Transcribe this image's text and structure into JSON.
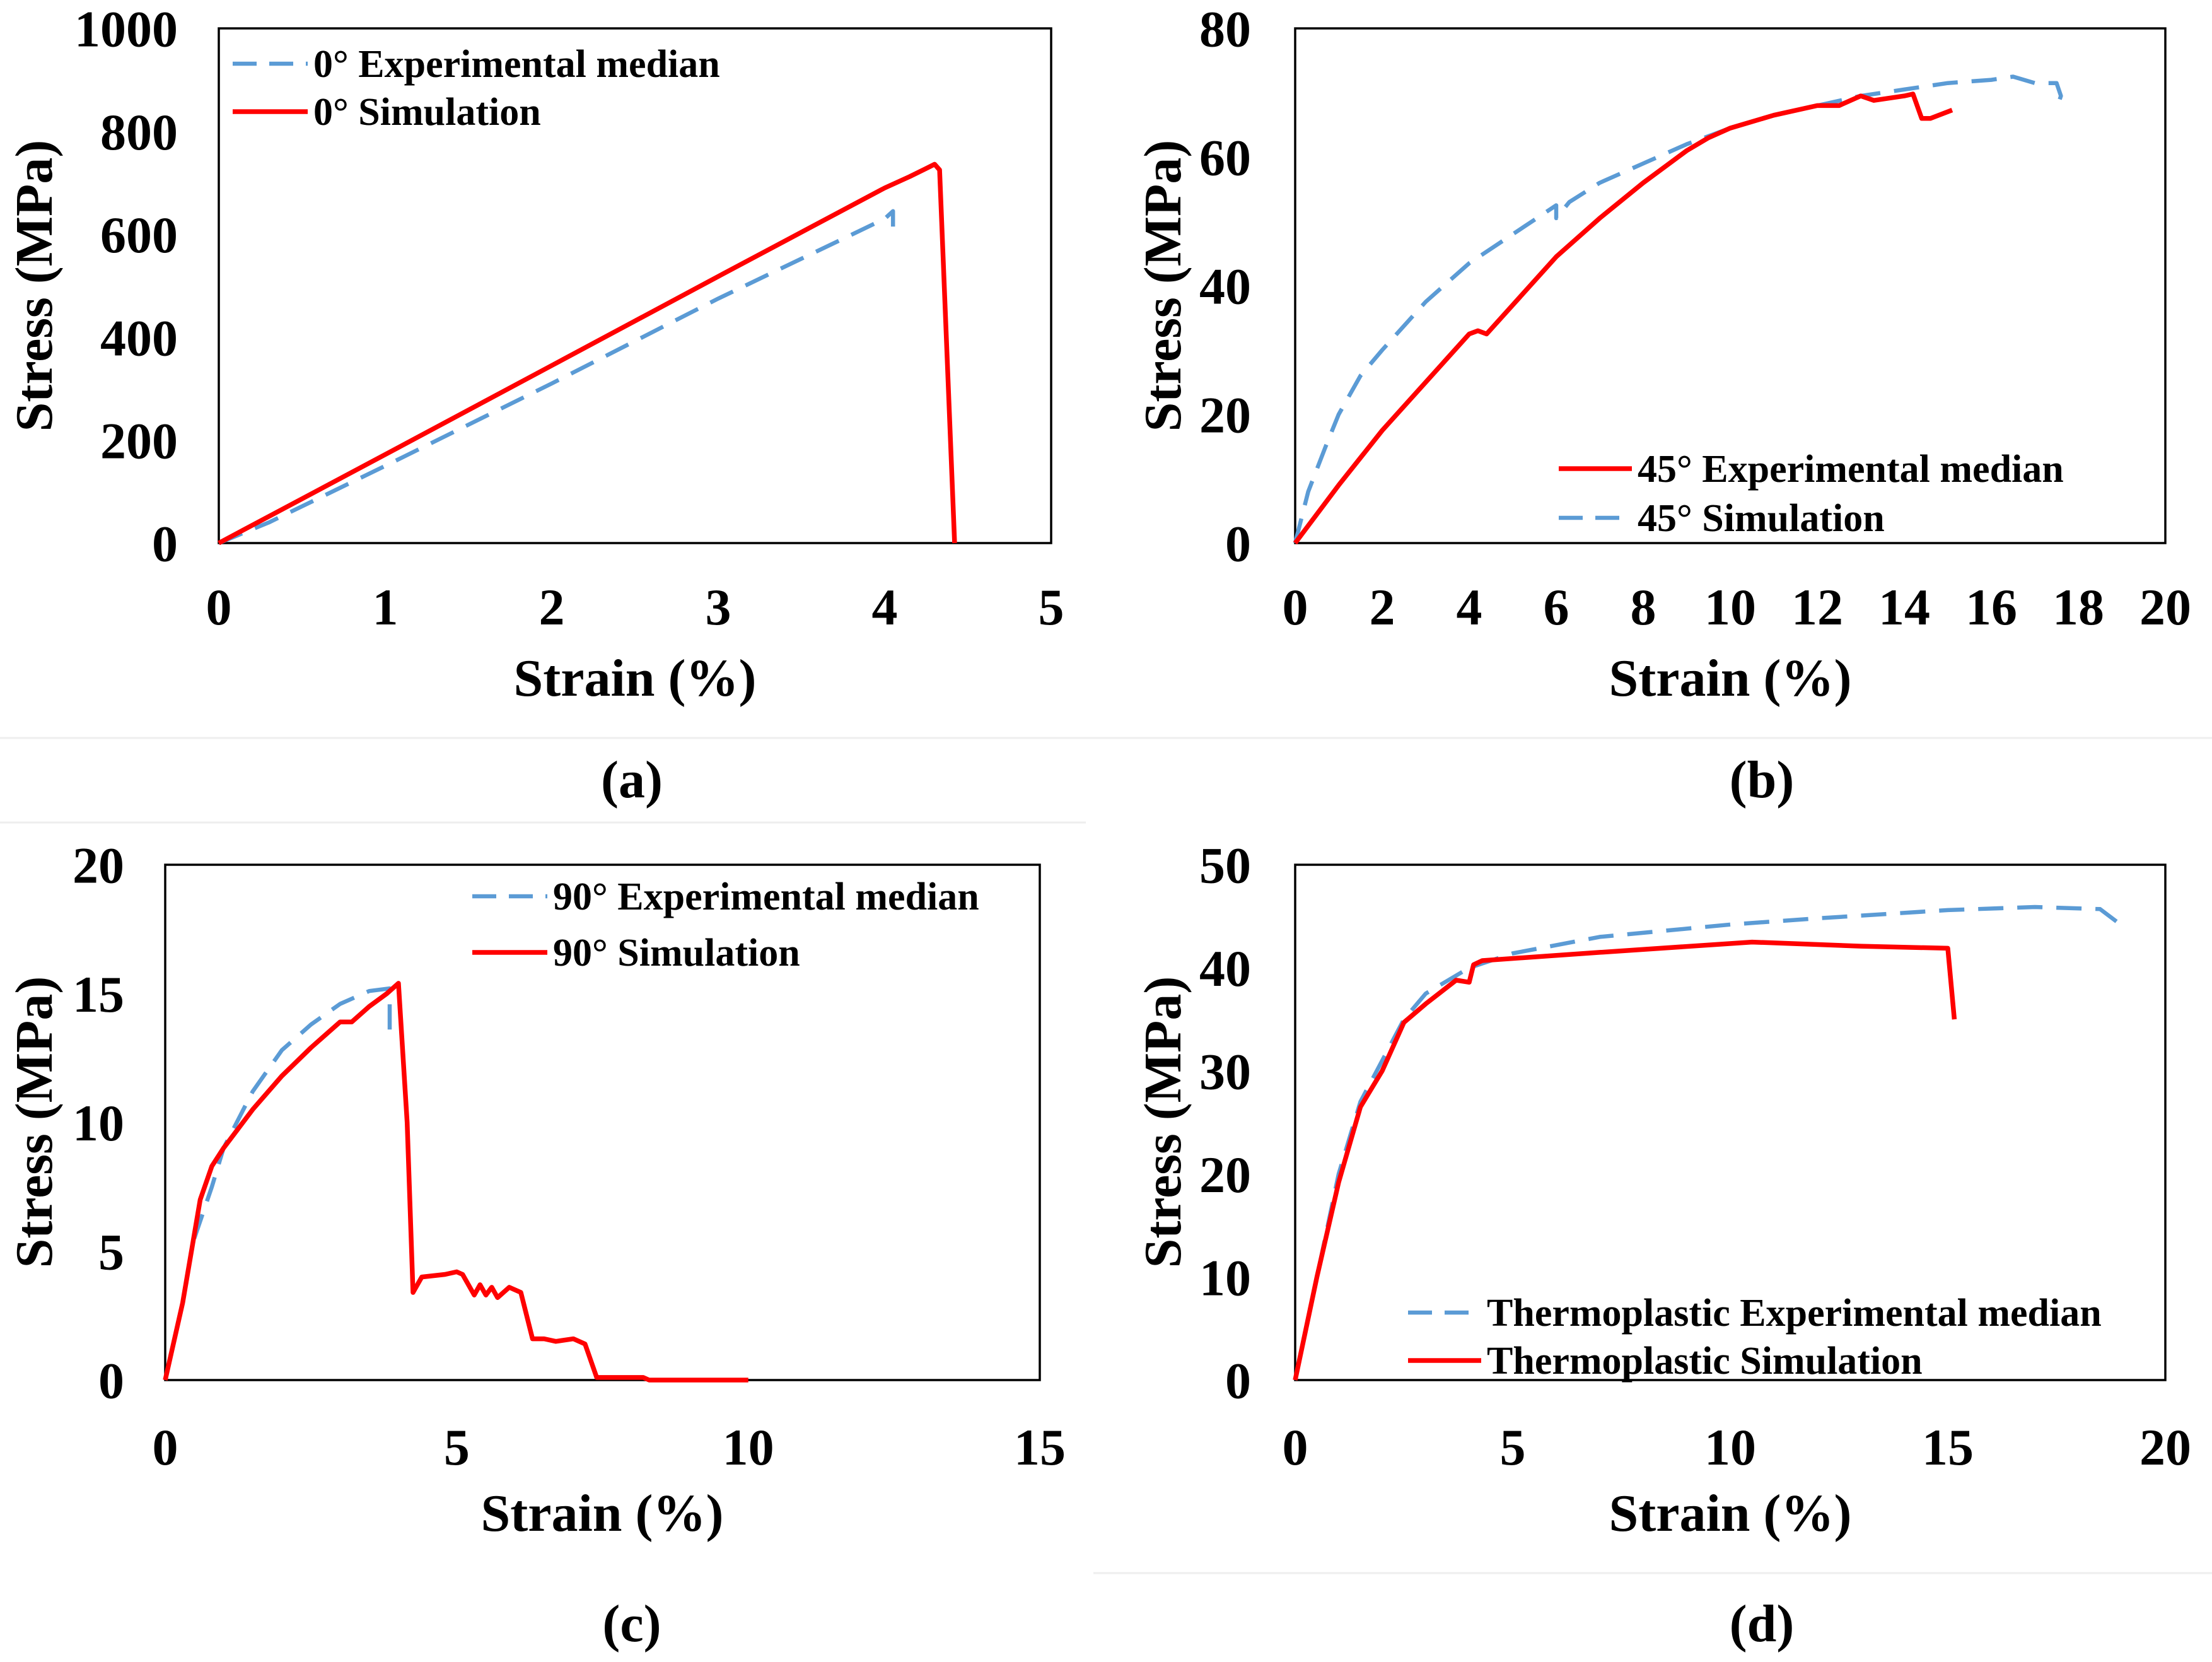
{
  "chart_data": [
    {
      "id": "a",
      "panel_label": "(a)",
      "type": "line",
      "xlabel": "Strain (%)",
      "ylabel": "Stress (MPa)",
      "xlim": [
        0,
        5
      ],
      "ylim": [
        0,
        1000
      ],
      "x_ticks": [
        0,
        1,
        2,
        3,
        4,
        5
      ],
      "y_ticks": [
        0,
        200,
        400,
        600,
        800,
        1000
      ],
      "grid": false,
      "legend_position": "top-left",
      "series": [
        {
          "name": "0° Experimental median",
          "color": "#5B9BD5",
          "line_style": "dashed",
          "x": [
            0,
            0.3,
            1,
            2,
            3,
            4,
            4.05,
            4.05
          ],
          "y": [
            0,
            40,
            150,
            310,
            475,
            630,
            645,
            615
          ]
        },
        {
          "name": "0° Simulation",
          "color": "#FF0000",
          "line_style": "solid",
          "x": [
            0,
            1,
            2,
            3,
            4,
            4.15,
            4.25,
            4.3,
            4.33,
            4.42
          ],
          "y": [
            0,
            172,
            345,
            518,
            690,
            712,
            728,
            736,
            725,
            0
          ]
        }
      ]
    },
    {
      "id": "b",
      "panel_label": "(b)",
      "type": "line",
      "xlabel": "Strain (%)",
      "ylabel": "Stress (MPa)",
      "xlim": [
        0,
        20
      ],
      "ylim": [
        0,
        80
      ],
      "x_ticks": [
        0,
        2,
        4,
        6,
        8,
        10,
        12,
        14,
        16,
        18,
        20
      ],
      "y_ticks": [
        0,
        20,
        40,
        60,
        80
      ],
      "grid": false,
      "legend_position": "bottom-right",
      "series": [
        {
          "name": "45° Experimental median",
          "color": "#FF0000",
          "line_style": "solid",
          "x": [
            0,
            1,
            2,
            3,
            4,
            4.2,
            4.4,
            5,
            6,
            7,
            8,
            9,
            9.5,
            10,
            11,
            12,
            12.5,
            13,
            13.3,
            14,
            14.2,
            14.4,
            14.6,
            15.1
          ],
          "y": [
            0,
            9,
            17.5,
            25,
            32.5,
            33,
            32.5,
            37,
            44.5,
            50.5,
            56,
            61,
            63,
            64.5,
            66.5,
            68,
            68,
            69.5,
            68.8,
            69.5,
            69.8,
            66,
            66,
            67.3
          ]
        },
        {
          "name": "45° Simulation",
          "color": "#5B9BD5",
          "line_style": "dashed",
          "x": [
            0,
            0.3,
            0.7,
            1,
            1.5,
            2,
            3,
            4,
            5,
            6,
            6,
            6.3,
            7,
            8,
            9,
            10,
            11,
            12,
            13,
            14,
            15,
            16,
            16.5,
            17,
            17.5,
            17.6,
            17.5
          ],
          "y": [
            0,
            8,
            15,
            20,
            26,
            30,
            37.5,
            43.5,
            48,
            52.5,
            50.5,
            53,
            56,
            59,
            62,
            64.5,
            66.5,
            68,
            69.5,
            70.5,
            71.5,
            72,
            72.5,
            71.5,
            71.5,
            69.5,
            67.5
          ]
        }
      ]
    },
    {
      "id": "c",
      "panel_label": "(c)",
      "type": "line",
      "xlabel": "Strain (%)",
      "ylabel": "Stress (MPa)",
      "xlim": [
        0,
        15
      ],
      "ylim": [
        0,
        20
      ],
      "x_ticks": [
        0,
        5,
        10,
        15
      ],
      "y_ticks": [
        0,
        5,
        10,
        15,
        20
      ],
      "grid": false,
      "legend_position": "top-right",
      "series": [
        {
          "name": "90° Experimental median",
          "color": "#5B9BD5",
          "line_style": "dashed",
          "x": [
            0.5,
            0.8,
            1,
            1.5,
            2,
            2.5,
            3,
            3.5,
            3.85,
            3.85
          ],
          "y": [
            5.5,
            7.5,
            9,
            11.2,
            12.8,
            13.8,
            14.6,
            15.1,
            15.2,
            13.5
          ]
        },
        {
          "name": "90° Simulation",
          "color": "#FF0000",
          "line_style": "solid",
          "x": [
            0,
            0.3,
            0.6,
            0.8,
            1,
            1.5,
            2,
            2.5,
            3,
            3.2,
            3.5,
            3.8,
            4,
            4.15,
            4.25,
            4.4,
            4.8,
            5,
            5.1,
            5.3,
            5.4,
            5.5,
            5.6,
            5.7,
            5.9,
            6.1,
            6.3,
            6.5,
            6.7,
            7,
            7.2,
            7.4,
            8.2,
            8.3,
            10
          ],
          "y": [
            0,
            3,
            7,
            8.3,
            9,
            10.5,
            11.8,
            12.9,
            13.9,
            13.9,
            14.5,
            15,
            15.4,
            10,
            3.4,
            4,
            4.1,
            4.2,
            4.1,
            3.3,
            3.7,
            3.3,
            3.6,
            3.2,
            3.6,
            3.4,
            1.6,
            1.6,
            1.5,
            1.6,
            1.4,
            0.1,
            0.1,
            0,
            0
          ]
        }
      ]
    },
    {
      "id": "d",
      "panel_label": "(d)",
      "type": "line",
      "xlabel": "Strain (%)",
      "ylabel": "Stress (MPa)",
      "xlim": [
        0,
        20
      ],
      "ylim": [
        0,
        50
      ],
      "x_ticks": [
        0,
        5,
        10,
        15,
        20
      ],
      "y_ticks": [
        0,
        10,
        20,
        30,
        40,
        50
      ],
      "grid": false,
      "legend_position": "bottom-right",
      "series": [
        {
          "name": "Thermoplastic Experimental median",
          "color": "#5B9BD5",
          "line_style": "dashed",
          "x": [
            0,
            0.5,
            1,
            1.5,
            2,
            2.5,
            3,
            4,
            5,
            7,
            10,
            12,
            15,
            17,
            18.5,
            19
          ],
          "y": [
            0,
            10,
            20,
            27,
            31,
            35,
            37.5,
            40,
            41.4,
            43,
            44.2,
            44.8,
            45.6,
            45.9,
            45.7,
            44.1
          ]
        },
        {
          "name": "Thermoplastic Simulation",
          "color": "#FF0000",
          "line_style": "solid",
          "x": [
            0,
            0.5,
            1,
            1.5,
            2,
            2.5,
            3,
            3.7,
            4,
            4.1,
            4.3,
            7,
            10.5,
            13,
            15,
            15.15
          ],
          "y": [
            0,
            10,
            19.2,
            26.5,
            30,
            34.7,
            36.5,
            38.8,
            38.6,
            40.3,
            40.7,
            41.5,
            42.5,
            42.1,
            41.9,
            35
          ]
        }
      ]
    }
  ]
}
